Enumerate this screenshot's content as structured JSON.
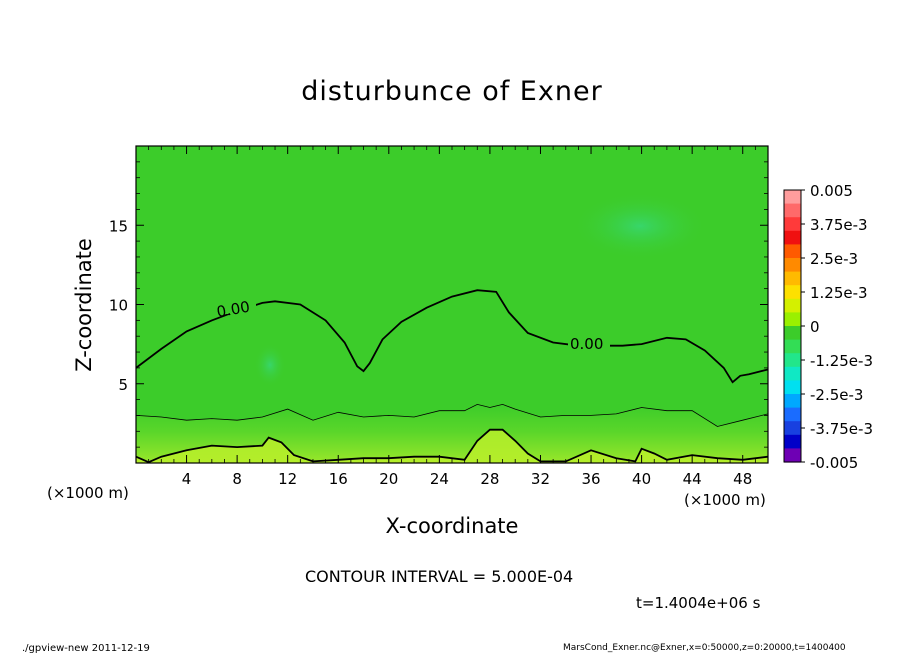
{
  "chart_data": {
    "type": "heatmap",
    "title": "disturbunce of Exner",
    "xlabel": "X-coordinate",
    "ylabel": "Z-coordinate",
    "x_unit_left": "(×1000 m)",
    "x_unit_right": "(×1000 m)",
    "xlim": [
      0,
      50
    ],
    "ylim": [
      0,
      20
    ],
    "x_ticks": [
      4,
      8,
      12,
      16,
      20,
      24,
      28,
      32,
      36,
      40,
      44,
      48
    ],
    "x_tick_labels": [
      "4",
      "8",
      "12",
      "16",
      "20",
      "24",
      "28",
      "32",
      "36",
      "40",
      "44",
      "48"
    ],
    "y_ticks": [
      5,
      10,
      15
    ],
    "y_tick_labels": [
      "5",
      "10",
      "15"
    ],
    "colorbar": {
      "tick_labels": [
        "0.005",
        "3.75e-3",
        "2.5e-3",
        "1.25e-3",
        "0",
        "-1.25e-3",
        "-2.5e-3",
        "-3.75e-3",
        "-0.005"
      ],
      "levels_high_to_low": [
        0.005,
        0.0045,
        0.004,
        0.0035,
        0.003,
        0.0025,
        0.002,
        0.0015,
        0.001,
        0.0005,
        0,
        -0.0005,
        -0.001,
        -0.0015,
        -0.002,
        -0.0025,
        -0.003,
        -0.0035,
        -0.004,
        -0.0045
      ],
      "colors_high_to_low": [
        "#ff9d9d",
        "#ff6a6a",
        "#ff3a3a",
        "#f01010",
        "#ff5a00",
        "#ff8a00",
        "#ffba00",
        "#fde000",
        "#d4f000",
        "#9af000",
        "#3ccc2a",
        "#33dd55",
        "#22e68a",
        "#10e8c4",
        "#00e0f0",
        "#00a8ff",
        "#1a6cff",
        "#1840e0",
        "#0000c8",
        "#6e00b4"
      ]
    },
    "background_color": "#3ccc2a",
    "contour_interval": 0.0005,
    "contour_labels": [
      "0.00",
      "0.00"
    ],
    "zero_contour": {
      "x": [
        0,
        2,
        4,
        6,
        8,
        10,
        11,
        13,
        15,
        16.5,
        17.5,
        18,
        18.5,
        19.5,
        21,
        23,
        25,
        27,
        28.5,
        29.5,
        31,
        33,
        35,
        37,
        38.5,
        40,
        42,
        43.5,
        45,
        46.5,
        47.2,
        47.8,
        48.5,
        50
      ],
      "y": [
        6.0,
        7.2,
        8.3,
        9.0,
        9.6,
        10.1,
        10.2,
        10.0,
        9.0,
        7.6,
        6.1,
        5.8,
        6.3,
        7.8,
        8.9,
        9.8,
        10.5,
        10.9,
        10.8,
        9.5,
        8.2,
        7.6,
        7.4,
        7.4,
        7.4,
        7.5,
        7.9,
        7.8,
        7.1,
        6.0,
        5.1,
        5.5,
        5.6,
        5.9
      ]
    },
    "positive_contour": {
      "x": [
        0,
        2,
        4,
        6,
        8,
        10,
        12,
        14,
        16,
        18,
        20,
        22,
        24,
        26,
        27,
        28,
        29,
        30,
        32,
        34,
        36,
        38,
        40,
        42,
        44,
        46,
        48,
        50
      ],
      "y": [
        3.0,
        2.9,
        2.7,
        2.8,
        2.7,
        2.9,
        3.4,
        2.7,
        3.2,
        2.9,
        3.0,
        2.9,
        3.3,
        3.3,
        3.7,
        3.5,
        3.7,
        3.4,
        2.9,
        3.0,
        3.0,
        3.1,
        3.5,
        3.3,
        3.3,
        2.3,
        2.7,
        3.1
      ]
    },
    "bottom_contour": {
      "x": [
        0,
        1,
        2,
        4,
        6,
        8,
        10,
        10.5,
        11.5,
        12.5,
        14,
        16,
        18,
        20,
        22,
        24,
        26,
        27,
        28,
        29,
        30,
        31,
        32,
        34,
        36,
        38,
        39.5,
        40,
        41,
        42,
        44,
        46,
        48,
        50
      ],
      "y": [
        0.4,
        0.05,
        0.4,
        0.8,
        1.1,
        1.0,
        1.1,
        1.6,
        1.3,
        0.5,
        0.1,
        0.2,
        0.3,
        0.3,
        0.4,
        0.4,
        0.2,
        1.4,
        2.1,
        2.1,
        1.4,
        0.6,
        0.1,
        0.1,
        0.8,
        0.3,
        0.1,
        0.9,
        0.6,
        0.2,
        0.5,
        0.3,
        0.2,
        0.4
      ]
    }
  },
  "contour_interval_text": "CONTOUR INTERVAL = 5.000E-04",
  "time_text": "t=1.4004e+06 s",
  "footer_left": "./gpview-new  2011-12-19",
  "footer_right": "MarsCond_Exner.nc@Exner,x=0:50000,z=0:20000,t=1400400"
}
